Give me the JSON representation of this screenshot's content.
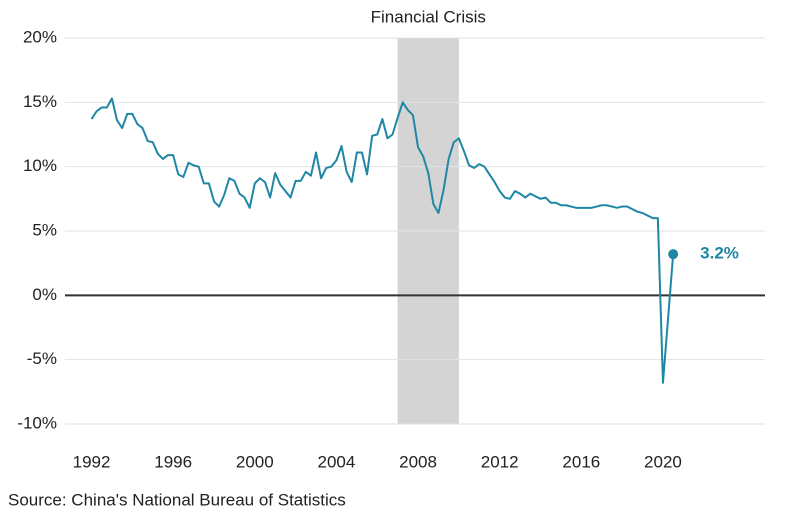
{
  "chart_data": {
    "type": "line",
    "x": [
      1992,
      1992.25,
      1992.5,
      1992.75,
      1993,
      1993.25,
      1993.5,
      1993.75,
      1994,
      1994.25,
      1994.5,
      1994.75,
      1995,
      1995.25,
      1995.5,
      1995.75,
      1996,
      1996.25,
      1996.5,
      1996.75,
      1997,
      1997.25,
      1997.5,
      1997.75,
      1998,
      1998.25,
      1998.5,
      1998.75,
      1999,
      1999.25,
      1999.5,
      1999.75,
      2000,
      2000.25,
      2000.5,
      2000.75,
      2001,
      2001.25,
      2001.5,
      2001.75,
      2002,
      2002.25,
      2002.5,
      2002.75,
      2003,
      2003.25,
      2003.5,
      2003.75,
      2004,
      2004.25,
      2004.5,
      2004.75,
      2005,
      2005.25,
      2005.5,
      2005.75,
      2006,
      2006.25,
      2006.5,
      2006.75,
      2007,
      2007.25,
      2007.5,
      2007.75,
      2008,
      2008.25,
      2008.5,
      2008.75,
      2009,
      2009.25,
      2009.5,
      2009.75,
      2010,
      2010.25,
      2010.5,
      2010.75,
      2011,
      2011.25,
      2011.5,
      2011.75,
      2012,
      2012.25,
      2012.5,
      2012.75,
      2013,
      2013.25,
      2013.5,
      2013.75,
      2014,
      2014.25,
      2014.5,
      2014.75,
      2015,
      2015.25,
      2015.5,
      2015.75,
      2016,
      2016.25,
      2016.5,
      2016.75,
      2017,
      2017.25,
      2017.5,
      2017.75,
      2018,
      2018.25,
      2018.5,
      2018.75,
      2019,
      2019.25,
      2019.5,
      2019.75,
      2020,
      2020.5
    ],
    "series": [
      {
        "color": "#1f87a4",
        "values": [
          13.7,
          14.3,
          14.6,
          14.6,
          15.3,
          13.6,
          13.0,
          14.1,
          14.1,
          13.3,
          13.0,
          12.0,
          11.9,
          11.0,
          10.6,
          10.9,
          10.9,
          9.4,
          9.2,
          10.3,
          10.1,
          10.0,
          8.7,
          8.7,
          7.3,
          6.9,
          7.8,
          9.1,
          8.9,
          7.9,
          7.6,
          6.8,
          8.7,
          9.1,
          8.8,
          7.6,
          9.5,
          8.6,
          8.1,
          7.6,
          8.9,
          8.9,
          9.6,
          9.3,
          11.1,
          9.1,
          9.9,
          10.0,
          10.5,
          11.6,
          9.6,
          8.8,
          11.1,
          11.1,
          9.4,
          12.4,
          12.5,
          13.7,
          12.2,
          12.5,
          13.8,
          15.0,
          14.4,
          14.0,
          11.5,
          10.8,
          9.5,
          7.1,
          6.4,
          8.2,
          10.6,
          11.9,
          12.2,
          11.2,
          10.1,
          9.9,
          10.2,
          10.0,
          9.4,
          8.8,
          8.1,
          7.6,
          7.5,
          8.1,
          7.9,
          7.6,
          7.9,
          7.7,
          7.5,
          7.6,
          7.2,
          7.2,
          7.0,
          7.0,
          6.9,
          6.8,
          6.8,
          6.8,
          6.8,
          6.9,
          7.0,
          7.0,
          6.9,
          6.8,
          6.9,
          6.9,
          6.7,
          6.5,
          6.4,
          6.2,
          6.0,
          6.0,
          -6.8,
          3.2
        ]
      }
    ],
    "annotations": [
      {
        "text": "3.2%",
        "x": 2020.5,
        "y": 3.2
      }
    ],
    "highlight": {
      "label": "Financial Crisis",
      "start": 2007,
      "end": 2010
    },
    "xlim": [
      1990.7,
      2025
    ],
    "ylim": [
      -10,
      20
    ],
    "xticks": [
      1992,
      1996,
      2000,
      2004,
      2008,
      2012,
      2016,
      2020
    ],
    "yticks": [
      {
        "value": 20,
        "label": "20%"
      },
      {
        "value": 15,
        "label": "15%"
      },
      {
        "value": 10,
        "label": "10%"
      },
      {
        "value": 5,
        "label": "5%"
      },
      {
        "value": 0,
        "label": "0%"
      },
      {
        "value": -5,
        "label": "-5%"
      },
      {
        "value": -10,
        "label": "-10%"
      }
    ],
    "grid": true,
    "source": "Source: China's National Bureau of Statistics"
  }
}
